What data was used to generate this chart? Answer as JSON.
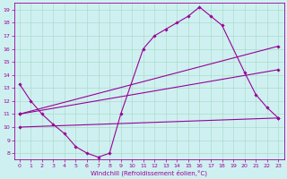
{
  "bg_color": "#cff0f0",
  "grid_color": "#aaddcc",
  "line_color": "#990099",
  "line_width": 0.8,
  "marker": "D",
  "marker_size": 1.8,
  "xlabel": "Windchill (Refroidissement éolien,°C)",
  "xlim": [
    -0.5,
    23.5
  ],
  "ylim": [
    7.5,
    19.5
  ],
  "xticks": [
    0,
    1,
    2,
    3,
    4,
    5,
    6,
    7,
    8,
    9,
    10,
    11,
    12,
    13,
    14,
    15,
    16,
    17,
    18,
    19,
    20,
    21,
    22,
    23
  ],
  "yticks": [
    8,
    9,
    10,
    11,
    12,
    13,
    14,
    15,
    16,
    17,
    18,
    19
  ],
  "curve1_x": [
    0,
    1,
    2,
    3,
    4,
    5,
    6,
    7,
    8,
    9,
    11,
    12,
    13,
    14,
    15,
    16,
    17,
    18,
    20,
    21,
    22,
    23
  ],
  "curve1_y": [
    13.3,
    12.0,
    11.0,
    10.2,
    9.5,
    8.5,
    8.0,
    7.7,
    8.0,
    11.0,
    16.0,
    17.0,
    17.5,
    18.0,
    18.5,
    19.2,
    18.5,
    17.8,
    14.2,
    12.5,
    11.5,
    10.7
  ],
  "curve2_x": [
    0,
    23
  ],
  "curve2_y": [
    11.0,
    16.2
  ],
  "curve3_x": [
    0,
    23
  ],
  "curve3_y": [
    11.0,
    14.4
  ],
  "curve4_x": [
    0,
    23
  ],
  "curve4_y": [
    10.0,
    10.7
  ]
}
